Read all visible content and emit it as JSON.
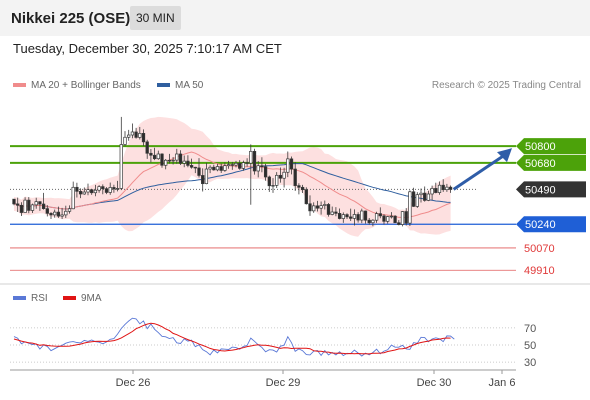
{
  "header": {
    "title": "Nikkei 225 (OSE)",
    "timeframe": "30 MIN"
  },
  "datetime": "Tuesday, December 30, 2025 7:10:17 AM CET",
  "legend": {
    "ma20": {
      "label": "MA 20 + Bollinger Bands",
      "color": "#f08c8c"
    },
    "ma50": {
      "label": "MA 50",
      "color": "#2f5f9f"
    }
  },
  "credit": "Research © 2025 Trading Central",
  "rsi_legend": {
    "rsi": {
      "label": "RSI",
      "color": "#5a78d6"
    },
    "ma9": {
      "label": "9MA",
      "color": "#e01414"
    }
  },
  "chart_data": {
    "type": "candlestick",
    "timeframe": "30 MIN",
    "x_ticks": [
      "Dec 26",
      "Dec 29",
      "Dec 30",
      "Jan 6"
    ],
    "y_range": [
      49840,
      51160
    ],
    "last_price": 50490,
    "levels": [
      {
        "value": 50800,
        "label": "50800",
        "kind": "resistance",
        "color": "#4ca20a"
      },
      {
        "value": 50680,
        "label": "50680",
        "kind": "resistance",
        "color": "#4ca20a"
      },
      {
        "value": 50490,
        "label": "50490",
        "kind": "last",
        "color": "#333333"
      },
      {
        "value": 50240,
        "label": "50240",
        "kind": "pivot",
        "color": "#1f5fd6"
      },
      {
        "value": 50070,
        "label": "50070",
        "kind": "support",
        "color": "#e05a5a"
      },
      {
        "value": 49910,
        "label": "49910",
        "kind": "support",
        "color": "#e05a5a"
      }
    ],
    "candles": [
      [
        50420,
        50420,
        50376,
        50386
      ],
      [
        50386,
        50431,
        50328,
        50376
      ],
      [
        50376,
        50398,
        50299,
        50324
      ],
      [
        50324,
        50434,
        50323,
        50413
      ],
      [
        50413,
        50435,
        50319,
        50339
      ],
      [
        50339,
        50388,
        50321,
        50379
      ],
      [
        50379,
        50430,
        50351,
        50402
      ],
      [
        50402,
        50406,
        50336,
        50385
      ],
      [
        50385,
        50465,
        50345,
        50352
      ],
      [
        50352,
        50377,
        50296,
        50318
      ],
      [
        50318,
        50327,
        50278,
        50307
      ],
      [
        50307,
        50345,
        50287,
        50327
      ],
      [
        50327,
        50366,
        50286,
        50298
      ],
      [
        50298,
        50357,
        50278,
        50307
      ],
      [
        50307,
        50373,
        50285,
        50333
      ],
      [
        50333,
        50375,
        50316,
        50351
      ],
      [
        50351,
        50546,
        50348,
        50505
      ],
      [
        50505,
        50538,
        50432,
        50476
      ],
      [
        50476,
        50497,
        50427,
        50457
      ],
      [
        50457,
        50504,
        50451,
        50471
      ],
      [
        50471,
        50531,
        50448,
        50488
      ],
      [
        50488,
        50494,
        50451,
        50466
      ],
      [
        50466,
        50522,
        50441,
        50484
      ],
      [
        50484,
        50521,
        50466,
        50510
      ],
      [
        50510,
        50526,
        50455,
        50495
      ],
      [
        50495,
        50506,
        50456,
        50468
      ],
      [
        50468,
        50539,
        50451,
        50504
      ],
      [
        50504,
        50523,
        50466,
        50493
      ],
      [
        50493,
        50551,
        50476,
        50497
      ],
      [
        50497,
        51010,
        50485,
        50812
      ],
      [
        50812,
        50908,
        50799,
        50864
      ],
      [
        50864,
        50917,
        50839,
        50880
      ],
      [
        50880,
        50963,
        50857,
        50902
      ],
      [
        50902,
        50931,
        50854,
        50863
      ],
      [
        50863,
        50938,
        50848,
        50892
      ],
      [
        50892,
        50921,
        50801,
        50831
      ],
      [
        50831,
        50846,
        50709,
        50749
      ],
      [
        50749,
        50780,
        50683,
        50735
      ],
      [
        50735,
        50789,
        50700,
        50710
      ],
      [
        50710,
        50768,
        50702,
        50744
      ],
      [
        50744,
        50749,
        50645,
        50663
      ],
      [
        50663,
        50708,
        50634,
        50699
      ],
      [
        50699,
        50745,
        50675,
        50698
      ],
      [
        50698,
        50722,
        50669,
        50700
      ],
      [
        50700,
        50781,
        50674,
        50744
      ],
      [
        50744,
        50771,
        50665,
        50677
      ],
      [
        50677,
        50733,
        50649,
        50693
      ],
      [
        50693,
        50735,
        50649,
        50662
      ],
      [
        50662,
        50711,
        50639,
        50649
      ],
      [
        50649,
        50652,
        50607,
        50644
      ],
      [
        50644,
        50714,
        50575,
        50590
      ],
      [
        50590,
        50641,
        50475,
        50531
      ],
      [
        50531,
        50680,
        50527,
        50636
      ],
      [
        50636,
        50663,
        50607,
        50649
      ],
      [
        50649,
        50667,
        50624,
        50630
      ],
      [
        50630,
        50673,
        50620,
        50654
      ],
      [
        50654,
        50675,
        50608,
        50626
      ],
      [
        50626,
        50684,
        50616,
        50660
      ],
      [
        50660,
        50695,
        50638,
        50668
      ],
      [
        50668,
        50687,
        50630,
        50664
      ],
      [
        50664,
        50695,
        50648,
        50677
      ],
      [
        50677,
        50700,
        50631,
        50641
      ],
      [
        50641,
        50696,
        50624,
        50682
      ],
      [
        50682,
        50713,
        50653,
        50678
      ],
      [
        50678,
        50813,
        50380,
        50763
      ],
      [
        50763,
        50782,
        50596,
        50622
      ],
      [
        50622,
        50693,
        50576,
        50660
      ],
      [
        50660,
        50721,
        50613,
        50653
      ],
      [
        50653,
        50673,
        50552,
        50579
      ],
      [
        50579,
        50589,
        50472,
        50516
      ],
      [
        50516,
        50571,
        50465,
        50519
      ],
      [
        50519,
        50614,
        50500,
        50591
      ],
      [
        50591,
        50647,
        50539,
        50570
      ],
      [
        50570,
        50645,
        50504,
        50613
      ],
      [
        50613,
        50762,
        50578,
        50709
      ],
      [
        50709,
        50726,
        50598,
        50636
      ],
      [
        50636,
        50686,
        50479,
        50517
      ],
      [
        50517,
        50534,
        50454,
        50505
      ],
      [
        50505,
        50522,
        50464,
        50488
      ],
      [
        50488,
        50505,
        50381,
        50387
      ],
      [
        50387,
        50447,
        50300,
        50336
      ],
      [
        50336,
        50397,
        50322,
        50372
      ],
      [
        50372,
        50408,
        50331,
        50355
      ],
      [
        50355,
        50403,
        50309,
        50374
      ],
      [
        50374,
        50410,
        50346,
        50382
      ],
      [
        50382,
        50392,
        50295,
        50310
      ],
      [
        50310,
        50367,
        50304,
        50328
      ],
      [
        50328,
        50363,
        50297,
        50318
      ],
      [
        50318,
        50353,
        50275,
        50281
      ],
      [
        50281,
        50325,
        50250,
        50309
      ],
      [
        50309,
        50319,
        50278,
        50293
      ],
      [
        50293,
        50352,
        50263,
        50282
      ],
      [
        50282,
        50347,
        50231,
        50310
      ],
      [
        50310,
        50326,
        50252,
        50270
      ],
      [
        50270,
        50352,
        50248,
        50335
      ],
      [
        50335,
        50339,
        50245,
        50269
      ],
      [
        50269,
        50285,
        50237,
        50251
      ],
      [
        50251,
        50277,
        50226,
        50269
      ],
      [
        50269,
        50330,
        50250,
        50316
      ],
      [
        50316,
        50361,
        50283,
        50300
      ],
      [
        50300,
        50312,
        50238,
        50261
      ],
      [
        50261,
        50300,
        50245,
        50295
      ],
      [
        50295,
        50327,
        50281,
        50298
      ],
      [
        50298,
        50305,
        50250,
        50251
      ],
      [
        50251,
        50270,
        50232,
        50238
      ],
      [
        50238,
        50335,
        50225,
        50331
      ],
      [
        50331,
        50356,
        50231,
        50248
      ],
      [
        50248,
        50483,
        50227,
        50473
      ],
      [
        50473,
        50502,
        50364,
        50368
      ],
      [
        50368,
        50470,
        50357,
        50452
      ],
      [
        50452,
        50496,
        50396,
        50463
      ],
      [
        50463,
        50511,
        50402,
        50411
      ],
      [
        50411,
        50480,
        50406,
        50457
      ],
      [
        50457,
        50517,
        50412,
        50497
      ],
      [
        50497,
        50538,
        50462,
        50467
      ],
      [
        50467,
        50547,
        50452,
        50520
      ],
      [
        50520,
        50563,
        50472,
        50488
      ],
      [
        50488,
        50530,
        50472,
        50506
      ],
      [
        50506,
        50518,
        50465,
        50490
      ]
    ],
    "rsi_ticks": [
      70,
      50,
      30
    ],
    "rsi_range": [
      15,
      85
    ],
    "rsi": [
      59.8,
      57.9,
      51.4,
      53.8,
      52.0,
      50.6,
      51.3,
      45.3,
      50.0,
      48.4,
      43.4,
      45.7,
      48.0,
      49.6,
      52.1,
      53.4,
      54.0,
      52.9,
      52.5,
      55.4,
      54.2,
      55.8,
      53.8,
      53.3,
      51.4,
      53.5,
      56.6,
      57.5,
      62.8,
      69.3,
      74.0,
      78.0,
      81.3,
      80.5,
      74.7,
      78.1,
      69.0,
      74.5,
      68.3,
      64.5,
      60.2,
      59.6,
      57.6,
      58.6,
      52.6,
      51.7,
      57.1,
      54.5,
      55.6,
      48.0,
      50.1,
      44.6,
      42.2,
      38.6,
      44.2,
      40.8,
      45.5,
      45.1,
      44.8,
      47.6,
      47.0,
      45.1,
      48.4,
      49.5,
      58.0,
      54.3,
      50.2,
      47.2,
      42.1,
      44.5,
      44.1,
      41.8,
      48.6,
      49.8,
      59.7,
      52.7,
      42.6,
      45.4,
      43.4,
      38.8,
      38.4,
      42.8,
      43.6,
      37.9,
      43.5,
      38.5,
      41.4,
      38.5,
      42.1,
      37.6,
      40.3,
      40.0,
      44.0,
      40.7,
      37.2,
      40.6,
      38.4,
      41.2,
      45.1,
      39.7,
      42.9,
      44.4,
      49.9,
      47.4,
      47.4,
      49.7,
      45.3,
      44.9,
      52.8,
      52.0,
      59.0,
      58.6,
      53.7,
      57.0,
      58.4,
      57.2,
      54.0,
      60.6,
      60.4,
      56.9
    ],
    "rsi_ma9": [
      57.0,
      55.8,
      54.6,
      53.5,
      52.7,
      52.2,
      51.1,
      49.6,
      50.4,
      49.4,
      48.9,
      48.7,
      48.6,
      48.6,
      48.5,
      48.7,
      49.4,
      50.3,
      51.0,
      52.3,
      53.2,
      53.8,
      54.2,
      54.4,
      54.2,
      54.2,
      54.5,
      55.1,
      56.4,
      58.3,
      60.7,
      63.2,
      65.7,
      69.0,
      70.8,
      72.9,
      74.4,
      75.4,
      74.8,
      73.3,
      71.3,
      68.8,
      66.8,
      63.5,
      62.0,
      60.0,
      58.1,
      56.3,
      54.7,
      53.2,
      51.1,
      49.5,
      47.9,
      46.0,
      44.8,
      44.2,
      43.4,
      43.0,
      43.6,
      44.0,
      44.8,
      45.9,
      46.8,
      48.1,
      48.8,
      49.6,
      50.2,
      49.8,
      49.7,
      49.2,
      48.3,
      47.2,
      46.0,
      46.8,
      46.6,
      45.9,
      46.3,
      46.3,
      46.2,
      46.1,
      45.7,
      43.4,
      42.6,
      42.7,
      41.8,
      41.7,
      40.7,
      40.3,
      40.6,
      40.2,
      39.9,
      40.1,
      39.7,
      40.1,
      39.8,
      39.8,
      39.6,
      40.3,
      40.3,
      40.6,
      41.0,
      42.4,
      43.2,
      44.2,
      45.4,
      45.6,
      46.5,
      48.4,
      50.0,
      51.7,
      52.9,
      53.7,
      54.6,
      55.8,
      56.3,
      56.8,
      57.7,
      58.2,
      58.1
    ]
  }
}
